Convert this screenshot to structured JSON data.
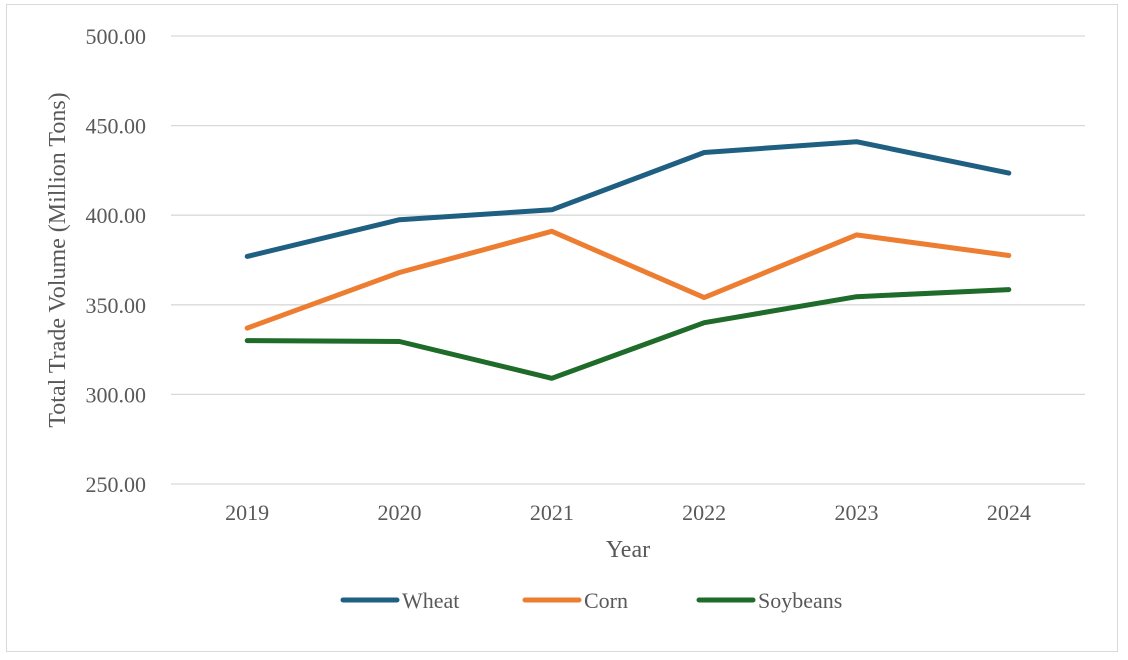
{
  "chart_data": {
    "type": "line",
    "categories": [
      "2019",
      "2020",
      "2021",
      "2022",
      "2023",
      "2024"
    ],
    "series": [
      {
        "name": "Wheat",
        "color": "#1f5f82",
        "values": [
          377,
          397.5,
          403,
          435,
          441,
          423.5
        ]
      },
      {
        "name": "Corn",
        "color": "#ed7d31",
        "values": [
          337,
          368,
          391,
          354,
          389,
          377.5
        ]
      },
      {
        "name": "Soybeans",
        "color": "#1e6b2a",
        "values": [
          330,
          329.5,
          309,
          340,
          354.5,
          358.5
        ]
      }
    ],
    "ylabel": "Total Trade Volume (Million Tons)",
    "xlabel": "Year",
    "ylim": [
      250,
      500
    ],
    "yticks": [
      "500.00",
      "450.00",
      "400.00",
      "350.00",
      "300.00",
      "250.00"
    ],
    "ytick_values": [
      500,
      450,
      400,
      350,
      300,
      250
    ],
    "grid": true,
    "legend_position": "bottom"
  }
}
